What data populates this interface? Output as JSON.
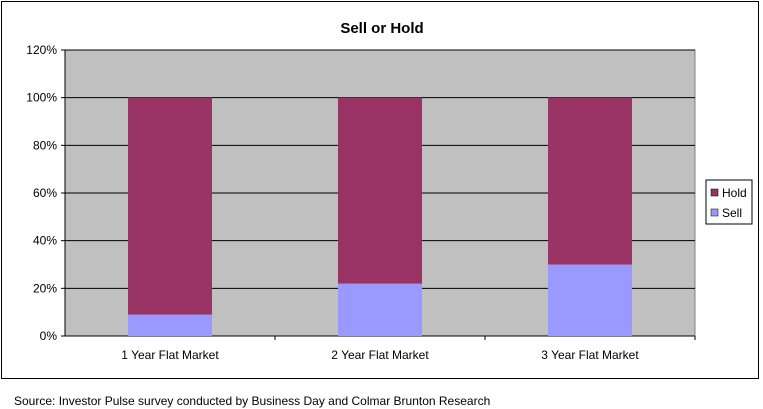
{
  "chart_data": {
    "type": "bar",
    "stacked": true,
    "title": "Sell or Hold",
    "categories": [
      "1 Year Flat Market",
      "2 Year Flat Market",
      "3 Year Flat Market"
    ],
    "series": [
      {
        "name": "Sell",
        "values": [
          9,
          22,
          30
        ],
        "color": "#9999ff"
      },
      {
        "name": "Hold",
        "values": [
          91,
          78,
          70
        ],
        "color": "#993366"
      }
    ],
    "ylim": [
      0,
      120
    ],
    "yticks": [
      0,
      20,
      40,
      60,
      80,
      100,
      120
    ],
    "ytick_format": "percent",
    "grid": true,
    "legend_position": "right",
    "legend_order": [
      "Hold",
      "Sell"
    ],
    "plot_background": "#c0c0c0"
  },
  "source": "Source: Investor Pulse survey conducted by Business Day and Colmar Brunton Research"
}
